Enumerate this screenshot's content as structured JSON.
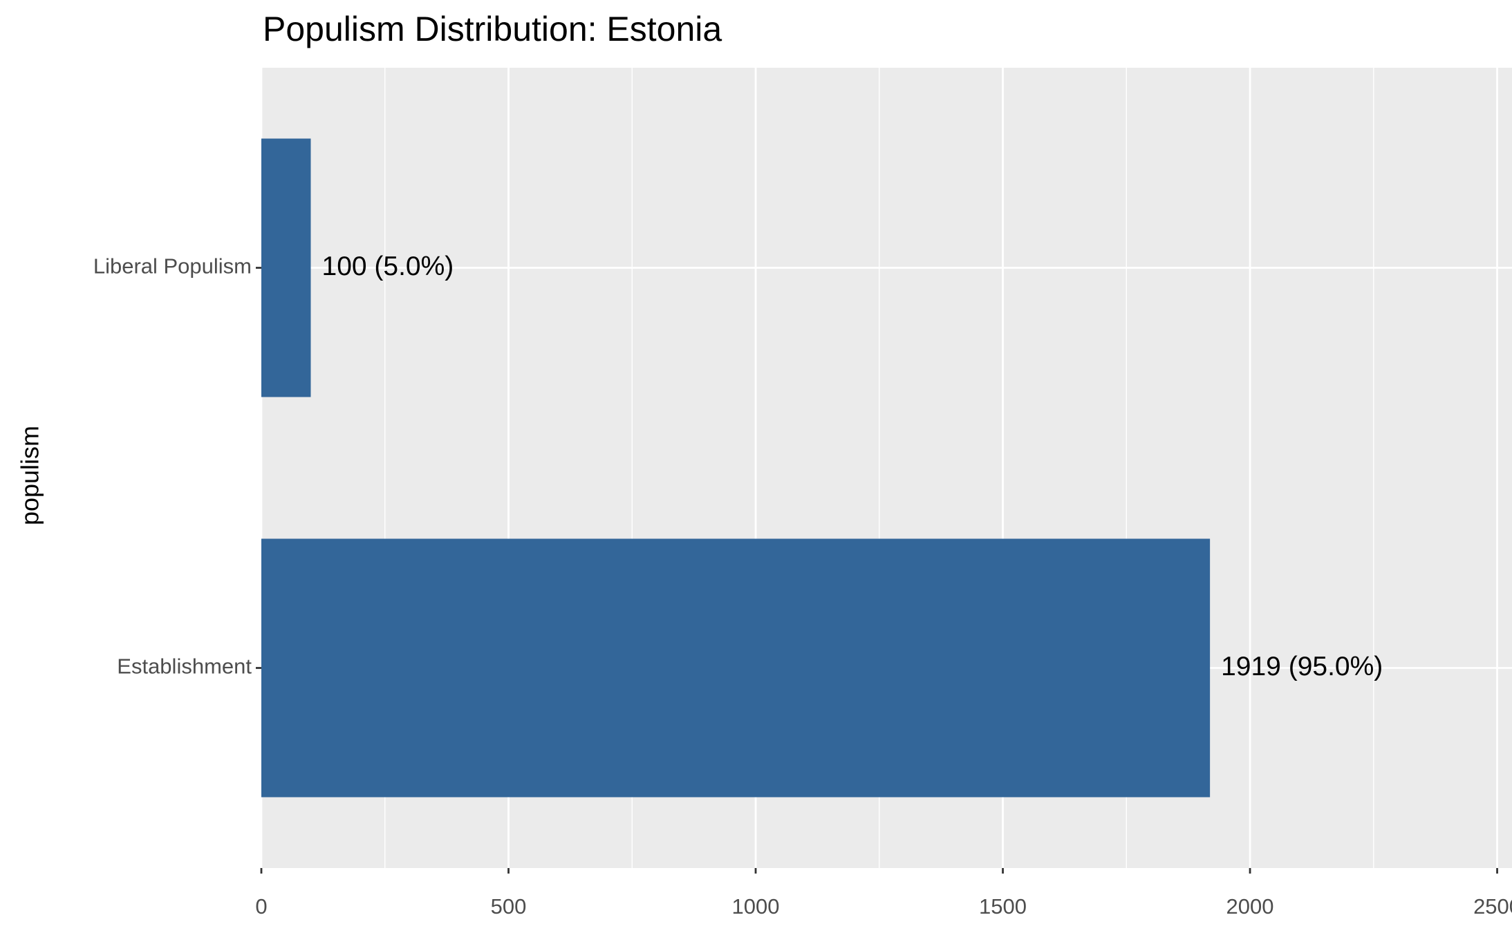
{
  "chart_data": {
    "type": "hbar",
    "title": "Populism Distribution: Estonia",
    "y_label": "populism",
    "categories": [
      "Establishment",
      "Liberal Populism"
    ],
    "values": [
      1919,
      100
    ],
    "value_labels": [
      "1919 (95.0%)",
      "100 (5.0%)"
    ],
    "color": "#336699",
    "xlim": [
      0,
      2530
    ],
    "xticks": [
      0,
      500,
      1000,
      1500,
      2000,
      2500
    ],
    "grid": true
  }
}
